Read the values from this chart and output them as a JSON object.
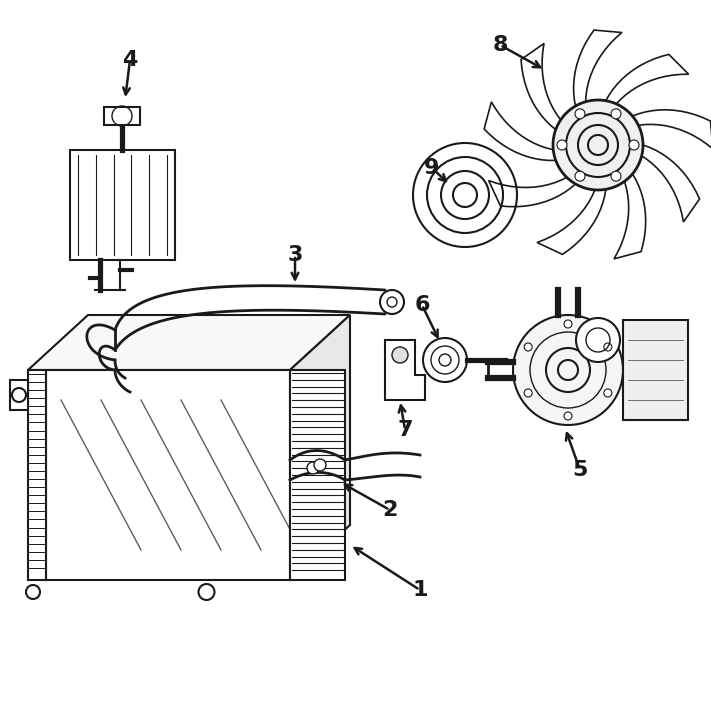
{
  "bg_color": "#ffffff",
  "line_color": "#1a1a1a",
  "line_width": 1.5,
  "fig_width": 7.11,
  "fig_height": 7.05,
  "dpi": 100
}
